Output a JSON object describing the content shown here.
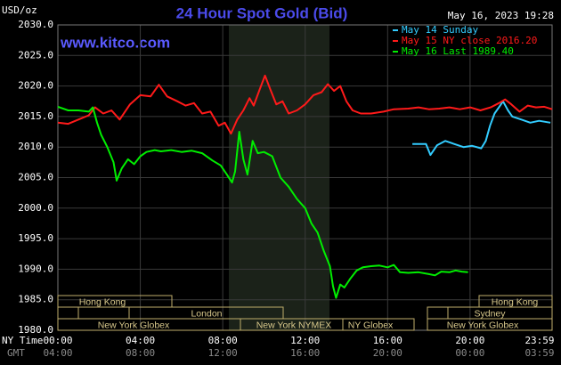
{
  "chart_data": {
    "type": "line",
    "title": "24 Hour Spot Gold (Bid)",
    "date": "May 16, 2023 19:28",
    "ylabel": "USD/oz",
    "watermark": "www.kitco.com",
    "xlabel": "NY Time",
    "x2label": "GMT",
    "xlim": [
      0,
      23.98
    ],
    "xticks": [
      {
        "value": 0,
        "label": "00:00"
      },
      {
        "value": 4,
        "label": "04:00"
      },
      {
        "value": 8,
        "label": "08:00"
      },
      {
        "value": 12,
        "label": "12:00"
      },
      {
        "value": 16,
        "label": "16:00"
      },
      {
        "value": 20,
        "label": "20:00"
      },
      {
        "value": 23.98,
        "label": "23:59"
      }
    ],
    "x2ticks": [
      {
        "value": 0,
        "label": "04:00"
      },
      {
        "value": 4,
        "label": "08:00"
      },
      {
        "value": 8,
        "label": "12:00"
      },
      {
        "value": 12,
        "label": "16:00"
      },
      {
        "value": 16,
        "label": "20:00"
      },
      {
        "value": 20,
        "label": "00:00"
      },
      {
        "value": 23.98,
        "label": "03:59"
      }
    ],
    "ylim": [
      1980,
      2030
    ],
    "yticks": [
      {
        "value": 1980,
        "label": "1980.0"
      },
      {
        "value": 1985,
        "label": "1985.0"
      },
      {
        "value": 1990,
        "label": "1990.0"
      },
      {
        "value": 1995,
        "label": "1995.0"
      },
      {
        "value": 2000,
        "label": "2000.0"
      },
      {
        "value": 2005,
        "label": "2005.0"
      },
      {
        "value": 2010,
        "label": "2010.0"
      },
      {
        "value": 2015,
        "label": "2015.0"
      },
      {
        "value": 2020,
        "label": "2020.0"
      },
      {
        "value": 2025,
        "label": "2025.0"
      },
      {
        "value": 2030,
        "label": "2030.0"
      }
    ],
    "grid": true,
    "series": [
      {
        "name": "May 14 Sunday",
        "color": "#33ccff",
        "x": [
          17.2,
          17.86,
          18.08,
          18.4,
          18.8,
          19.24,
          19.68,
          20.1,
          20.54,
          20.76,
          20.97,
          21.19,
          21.4,
          21.6,
          21.84,
          22.05,
          22.49,
          22.92,
          23.35,
          23.9
        ],
        "values": [
          2010.5,
          2010.5,
          2008.7,
          2010.3,
          2011,
          2010.5,
          2010,
          2010.2,
          2009.8,
          2011,
          2013.5,
          2015.5,
          2016.5,
          2017.5,
          2016,
          2015,
          2014.5,
          2014,
          2014.3,
          2014
        ]
      },
      {
        "name": "May 15 NY close 2016.20",
        "color": "#ff1a1a",
        "x": [
          0,
          0.5,
          1.0,
          1.5,
          1.8,
          2.2,
          2.6,
          3.0,
          3.5,
          4.0,
          4.5,
          4.9,
          5.3,
          5.8,
          6.2,
          6.6,
          7.0,
          7.4,
          7.8,
          8.1,
          8.4,
          8.7,
          9.0,
          9.3,
          9.5,
          9.8,
          10.05,
          10.3,
          10.6,
          10.9,
          11.2,
          11.6,
          12.0,
          12.4,
          12.8,
          13.1,
          13.4,
          13.7,
          14.0,
          14.3,
          14.7,
          15.2,
          15.8,
          16.3,
          17.0,
          17.5,
          18.0,
          18.5,
          19.0,
          19.5,
          20.0,
          20.5,
          21.0,
          21.4,
          21.7,
          22.0,
          22.4,
          22.8,
          23.2,
          23.6,
          23.98
        ],
        "values": [
          2014,
          2013.8,
          2014.5,
          2015.2,
          2016.5,
          2015.5,
          2016,
          2014.5,
          2017,
          2018.5,
          2018.3,
          2020.2,
          2018.3,
          2017.5,
          2016.8,
          2017.2,
          2015.5,
          2015.8,
          2013.5,
          2014,
          2012.2,
          2014.5,
          2016,
          2018,
          2016.8,
          2019.5,
          2021.7,
          2019.5,
          2017,
          2017.5,
          2015.5,
          2016,
          2017,
          2018.5,
          2019,
          2020.3,
          2019.2,
          2020,
          2017.5,
          2016,
          2015.5,
          2015.5,
          2015.8,
          2016.2,
          2016.3,
          2016.5,
          2016.2,
          2016.3,
          2016.5,
          2016.2,
          2016.5,
          2016,
          2016.5,
          2017.2,
          2017.8,
          2017,
          2015.8,
          2016.8,
          2016.5,
          2016.6,
          2016.2
        ]
      },
      {
        "name": "May 16 Last 1989.40",
        "color": "#00ee00",
        "x": [
          0,
          0.5,
          1.0,
          1.5,
          1.7,
          1.9,
          2.1,
          2.4,
          2.7,
          2.85,
          3.1,
          3.4,
          3.7,
          4.0,
          4.3,
          4.7,
          5.0,
          5.5,
          6.0,
          6.5,
          7.0,
          7.5,
          7.9,
          8.2,
          8.45,
          8.6,
          8.8,
          9.0,
          9.2,
          9.45,
          9.7,
          10.0,
          10.4,
          10.8,
          11.2,
          11.6,
          12.0,
          12.3,
          12.6,
          12.9,
          13.2,
          13.35,
          13.5,
          13.7,
          13.9,
          14.2,
          14.5,
          14.8,
          15.2,
          15.6,
          16.0,
          16.3,
          16.6,
          17.0,
          17.5,
          18.0,
          18.3,
          18.6,
          19.0,
          19.3,
          19.6,
          19.9
        ],
        "values": [
          2016.6,
          2016,
          2016,
          2015.8,
          2016.5,
          2014,
          2012,
          2010,
          2007.5,
          2004.5,
          2006.5,
          2008,
          2007.2,
          2008.5,
          2009.2,
          2009.5,
          2009.3,
          2009.5,
          2009.2,
          2009.4,
          2009,
          2007.8,
          2007,
          2005.5,
          2004.2,
          2006,
          2012.5,
          2008,
          2005.5,
          2011,
          2009,
          2009.2,
          2008.5,
          2005,
          2003.5,
          2001.5,
          2000,
          1997.5,
          1996,
          1993,
          1990.5,
          1987.2,
          1985.3,
          1987.5,
          1987,
          1988.5,
          1989.8,
          1990.3,
          1990.5,
          1990.6,
          1990.3,
          1990.7,
          1989.5,
          1989.4,
          1989.5,
          1989.2,
          1989,
          1989.6,
          1989.5,
          1989.8,
          1989.6,
          1989.5
        ]
      }
    ],
    "sessions": [
      "Hong Kong",
      "London",
      "New York Globex",
      "New York NYMEX",
      "NY Globex",
      "Hong Kong",
      "Sydney",
      "New York Globex"
    ]
  }
}
